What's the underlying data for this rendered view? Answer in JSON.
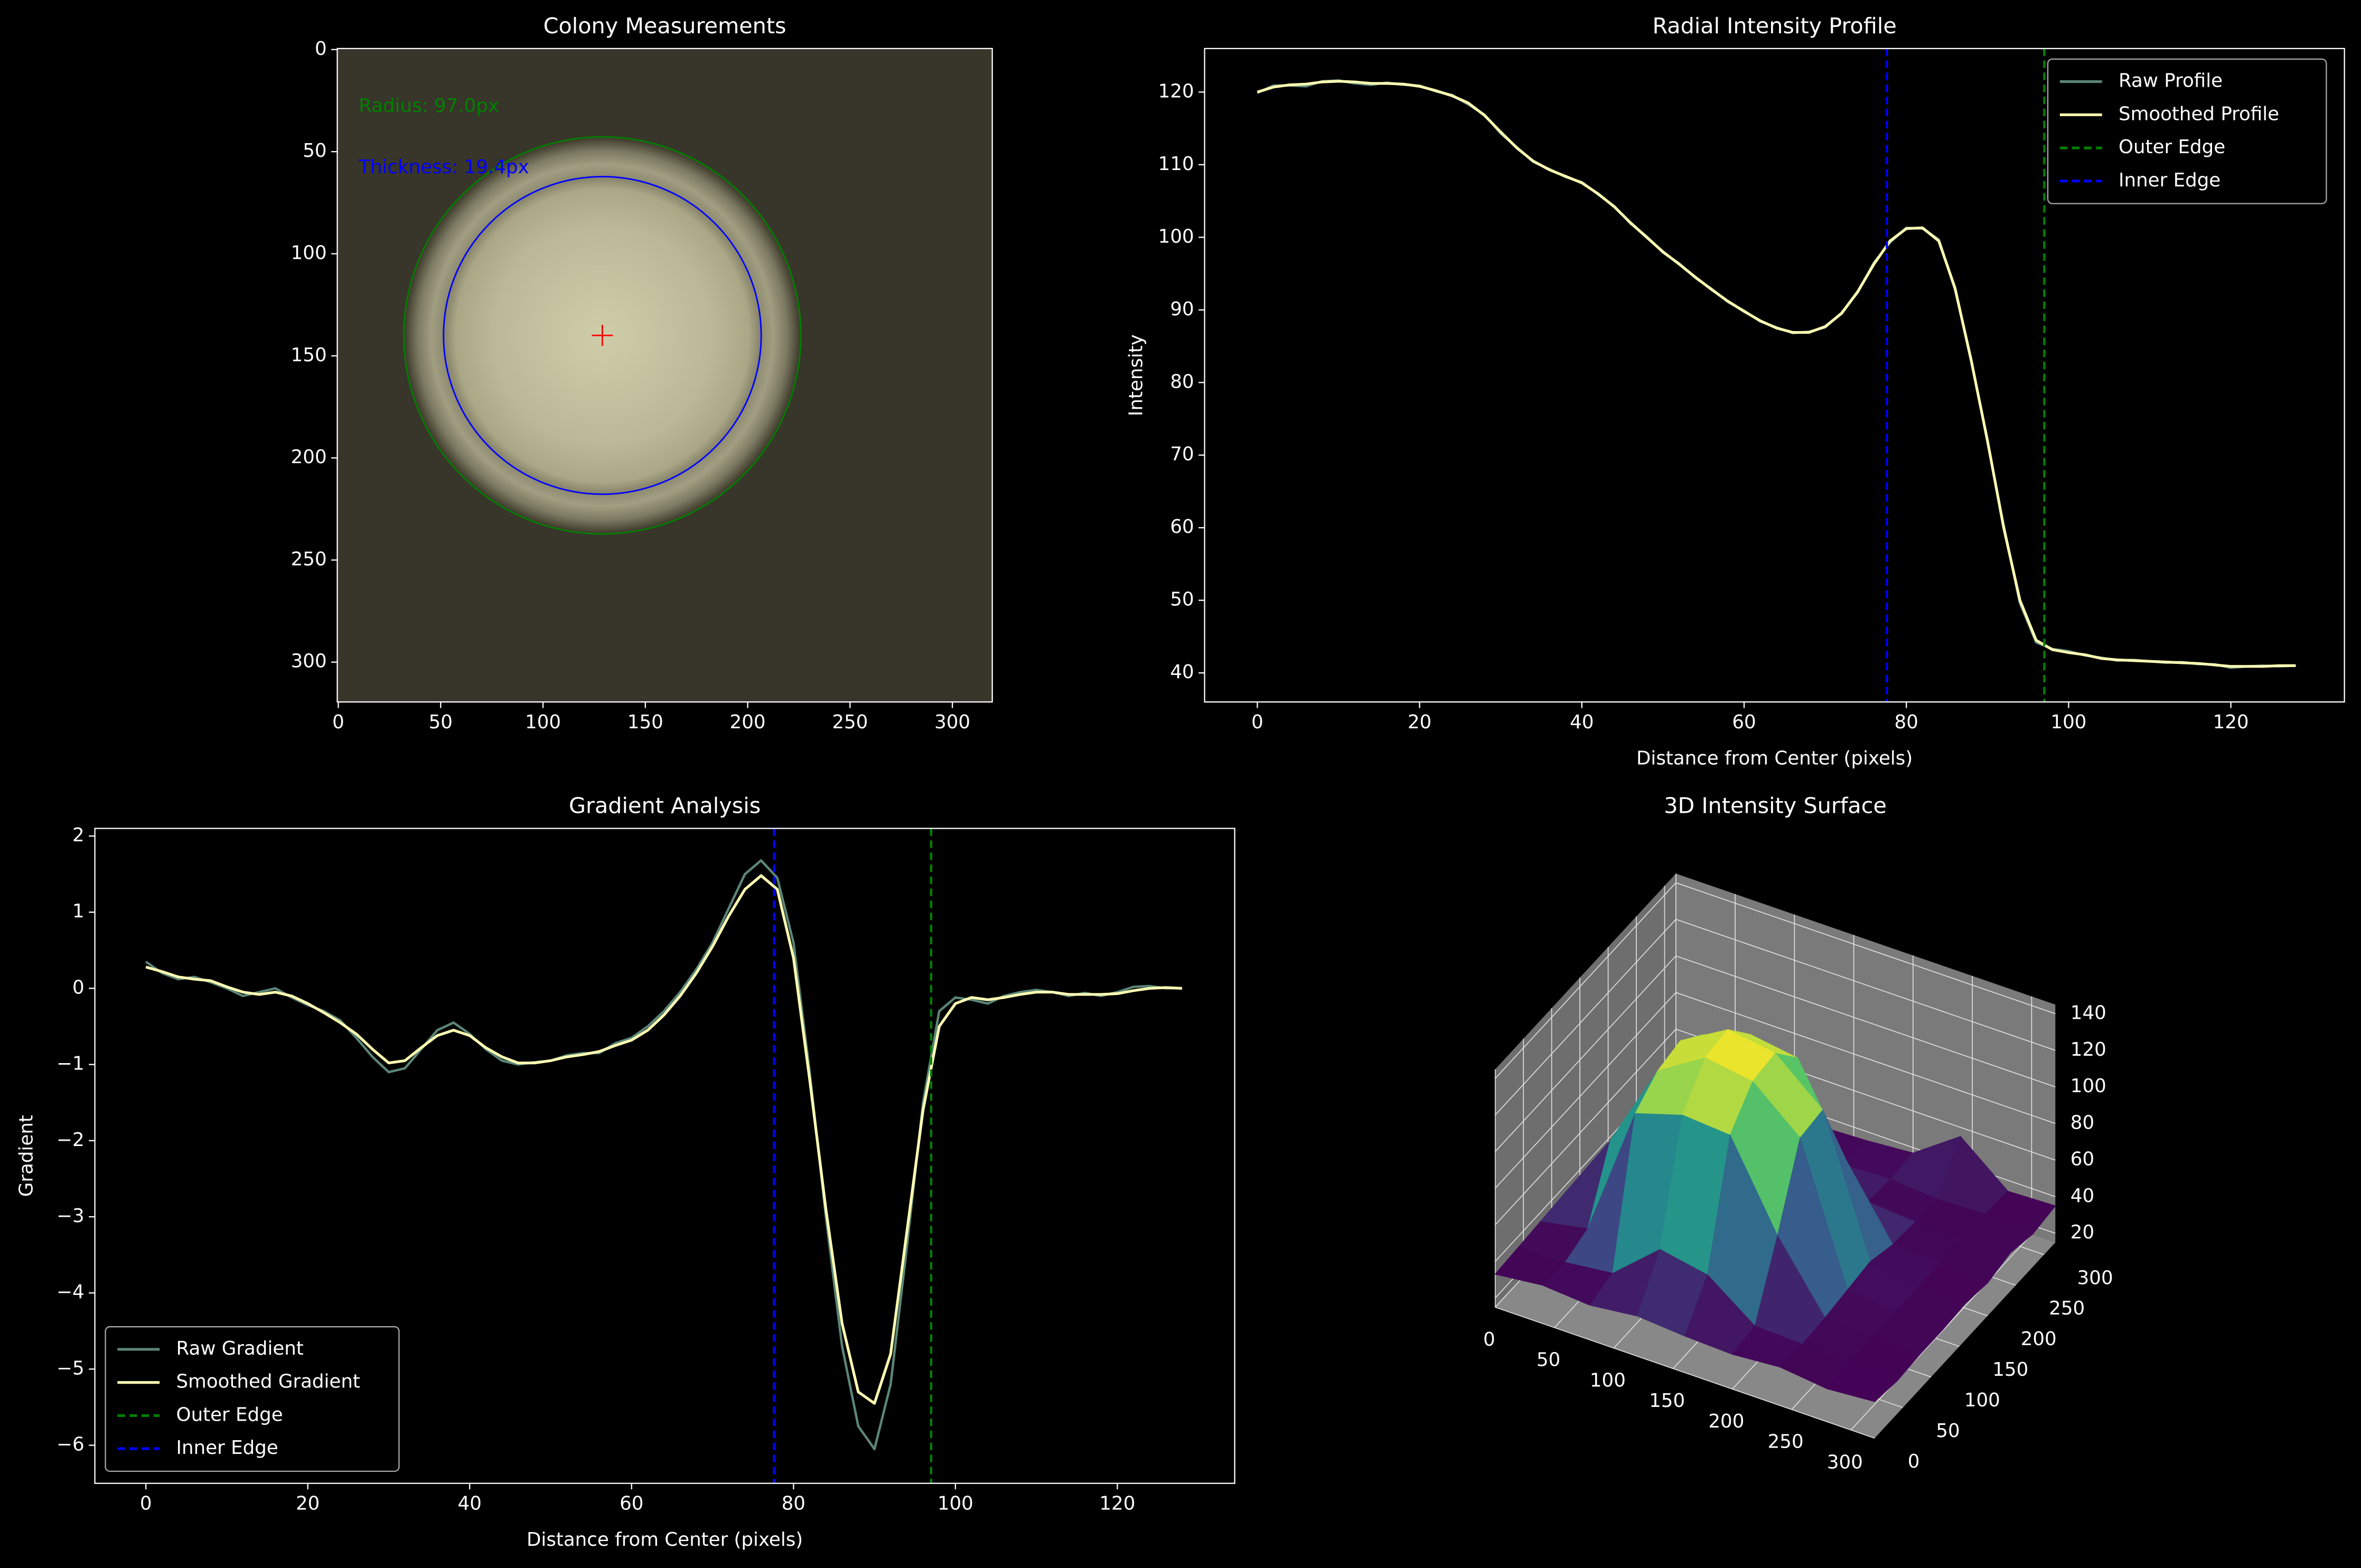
{
  "chart_data": [
    {
      "type": "image",
      "title": "Colony Measurements",
      "xlim": [
        -0.5,
        319.5
      ],
      "ylim": [
        319.5,
        -0.5
      ],
      "xticks": [
        0,
        50,
        100,
        150,
        200,
        250,
        300
      ],
      "yticks": [
        0,
        50,
        100,
        150,
        200,
        250,
        300
      ],
      "circles": [
        {
          "cx": 129,
          "cy": 140,
          "r": 97,
          "color": "green"
        },
        {
          "cx": 129,
          "cy": 140,
          "r": 77.6,
          "color": "blue"
        }
      ],
      "center": {
        "x": 129,
        "y": 140,
        "color": "red"
      },
      "annotations": [
        {
          "text": "Radius: 97.0px",
          "x": 10,
          "y": 28,
          "color": "green"
        },
        {
          "text": "Thickness: 19.4px",
          "x": 10,
          "y": 58,
          "color": "blue"
        }
      ]
    },
    {
      "type": "line",
      "title": "Radial Intensity Profile",
      "xlabel": "Distance from Center (pixels)",
      "ylabel": "Intensity",
      "legend": "upper right",
      "xlim": [
        -6.5,
        134
      ],
      "ylim": [
        36,
        126
      ],
      "xticks": [
        0,
        20,
        40,
        60,
        80,
        100,
        120
      ],
      "yticks": [
        40,
        50,
        60,
        70,
        80,
        90,
        100,
        110,
        120
      ],
      "x": [
        0,
        2,
        4,
        6,
        8,
        10,
        12,
        14,
        16,
        18,
        20,
        22,
        24,
        26,
        28,
        30,
        32,
        34,
        36,
        38,
        40,
        42,
        44,
        46,
        48,
        50,
        52,
        54,
        56,
        58,
        60,
        62,
        64,
        66,
        68,
        70,
        72,
        74,
        76,
        78,
        80,
        82,
        84,
        86,
        88,
        90,
        92,
        94,
        96,
        98,
        100,
        102,
        104,
        106,
        108,
        110,
        112,
        114,
        116,
        118,
        120,
        122,
        124,
        126,
        128
      ],
      "series": [
        {
          "name": "Raw Profile",
          "color": "#5b8578",
          "width": 1.6,
          "values": [
            119.9,
            120.9,
            120.9,
            120.8,
            121.5,
            121.6,
            121.2,
            121.0,
            121.3,
            121.0,
            120.9,
            120.1,
            119.6,
            118.3,
            116.9,
            114.3,
            112.4,
            110.4,
            109.4,
            108.3,
            107.6,
            105.9,
            104.3,
            101.9,
            100.1,
            97.9,
            96.4,
            94.4,
            92.9,
            91.1,
            89.9,
            88.4,
            87.6,
            86.8,
            87.0,
            87.6,
            89.6,
            92.4,
            96.5,
            99.3,
            101.3,
            101.2,
            99.7,
            92.8,
            83.2,
            71.8,
            60.3,
            49.6,
            44.2,
            43.3,
            43.0,
            42.4,
            42.1,
            41.7,
            41.8,
            41.6,
            41.4,
            41.5,
            41.2,
            41.2,
            40.7,
            40.9,
            41.0,
            40.9,
            41.0
          ]
        },
        {
          "name": "Smoothed Profile",
          "color": "#ffffb3",
          "width": 1.8,
          "values": [
            120,
            120.7,
            121,
            121.1,
            121.4,
            121.5,
            121.4,
            121.2,
            121.2,
            121.1,
            120.8,
            120.2,
            119.5,
            118.5,
            116.8,
            114.5,
            112.3,
            110.5,
            109.3,
            108.4,
            107.5,
            106,
            104.2,
            102,
            100,
            98,
            96.3,
            94.5,
            92.8,
            91.2,
            89.8,
            88.5,
            87.5,
            86.9,
            86.9,
            87.7,
            89.5,
            92.5,
            96.3,
            99.5,
            101.2,
            101.3,
            99.5,
            93,
            83,
            72,
            60,
            50,
            44.5,
            43.2,
            42.8,
            42.5,
            42,
            41.8,
            41.7,
            41.6,
            41.5,
            41.4,
            41.3,
            41.1,
            40.9,
            40.9,
            40.9,
            41,
            41
          ]
        }
      ],
      "vlines": [
        {
          "name": "Outer Edge",
          "x": 97,
          "color": "green"
        },
        {
          "name": "Inner Edge",
          "x": 77.6,
          "color": "blue"
        }
      ]
    },
    {
      "type": "line",
      "title": "Gradient Analysis",
      "xlabel": "Distance from Center (pixels)",
      "ylabel": "Gradient",
      "legend": "lower left",
      "xlim": [
        -6.3,
        134.5
      ],
      "ylim": [
        -6.5,
        2.1
      ],
      "xticks": [
        0,
        20,
        40,
        60,
        80,
        100,
        120
      ],
      "yticks": [
        {
          "value": -6,
          "label": "−6"
        },
        {
          "value": -5,
          "label": "−5"
        },
        {
          "value": -4,
          "label": "−4"
        },
        {
          "value": -3,
          "label": "−3"
        },
        {
          "value": -2,
          "label": "−2"
        },
        {
          "value": -1,
          "label": "−1"
        },
        0,
        1,
        2
      ],
      "x": [
        0,
        2,
        4,
        6,
        8,
        10,
        12,
        14,
        16,
        18,
        20,
        22,
        24,
        26,
        28,
        30,
        32,
        34,
        36,
        38,
        40,
        42,
        44,
        46,
        48,
        50,
        52,
        54,
        56,
        58,
        60,
        62,
        64,
        66,
        68,
        70,
        72,
        74,
        76,
        78,
        80,
        82,
        84,
        86,
        88,
        90,
        92,
        94,
        96,
        98,
        100,
        102,
        104,
        106,
        108,
        110,
        112,
        114,
        116,
        118,
        120,
        122,
        124,
        126,
        128
      ],
      "series": [
        {
          "name": "Raw Gradient",
          "color": "#5b8578",
          "width": 1.6,
          "values": [
            0.35,
            0.2,
            0.12,
            0.15,
            0.08,
            0,
            -0.1,
            -0.05,
            0,
            -0.12,
            -0.22,
            -0.3,
            -0.42,
            -0.65,
            -0.9,
            -1.1,
            -1.05,
            -0.8,
            -0.55,
            -0.45,
            -0.6,
            -0.8,
            -0.95,
            -1.0,
            -0.97,
            -0.95,
            -0.88,
            -0.85,
            -0.85,
            -0.72,
            -0.65,
            -0.5,
            -0.3,
            -0.05,
            0.25,
            0.6,
            1.05,
            1.5,
            1.68,
            1.45,
            0.6,
            -1.1,
            -3.0,
            -4.7,
            -5.75,
            -6.05,
            -5.2,
            -3.4,
            -1.5,
            -0.3,
            -0.12,
            -0.15,
            -0.2,
            -0.1,
            -0.05,
            -0.02,
            -0.05,
            -0.1,
            -0.06,
            -0.1,
            -0.05,
            0.02,
            0.03,
            0,
            0
          ]
        },
        {
          "name": "Smoothed Gradient",
          "color": "#ffffb3",
          "width": 1.8,
          "values": [
            0.28,
            0.22,
            0.15,
            0.12,
            0.1,
            0.02,
            -0.05,
            -0.08,
            -0.05,
            -0.1,
            -0.2,
            -0.32,
            -0.45,
            -0.6,
            -0.8,
            -0.98,
            -0.95,
            -0.78,
            -0.62,
            -0.55,
            -0.62,
            -0.78,
            -0.9,
            -0.98,
            -0.98,
            -0.95,
            -0.9,
            -0.87,
            -0.83,
            -0.75,
            -0.68,
            -0.55,
            -0.35,
            -0.1,
            0.2,
            0.55,
            0.95,
            1.3,
            1.48,
            1.3,
            0.4,
            -1.2,
            -2.9,
            -4.4,
            -5.3,
            -5.45,
            -4.8,
            -3.2,
            -1.6,
            -0.5,
            -0.2,
            -0.12,
            -0.15,
            -0.12,
            -0.08,
            -0.05,
            -0.05,
            -0.08,
            -0.08,
            -0.08,
            -0.07,
            -0.03,
            0,
            0.01,
            0
          ]
        }
      ],
      "vlines": [
        {
          "name": "Outer Edge",
          "x": 97,
          "color": "green"
        },
        {
          "name": "Inner Edge",
          "x": 77.6,
          "color": "blue"
        }
      ]
    },
    {
      "type": "surface",
      "title": "3D Intensity Surface",
      "colormap": "viridis",
      "xlim": [
        0,
        320
      ],
      "ylim": [
        0,
        320
      ],
      "zlim": [
        15,
        145
      ],
      "xticks": [
        0,
        50,
        100,
        150,
        200,
        250,
        300
      ],
      "yticks": [
        0,
        50,
        100,
        150,
        200,
        250,
        300
      ],
      "zticks": [
        20,
        40,
        60,
        80,
        100,
        120,
        140
      ],
      "x": [
        0,
        40,
        80,
        120,
        160,
        200,
        240,
        280,
        320
      ],
      "y": [
        0,
        40,
        80,
        120,
        160,
        200,
        240,
        280,
        320
      ],
      "z": [
        [
          33,
          36,
          34,
          37,
          35,
          34,
          36,
          33,
          35
        ],
        [
          34,
          35,
          38,
          60,
          55,
          36,
          35,
          34,
          33
        ],
        [
          35,
          40,
          112,
          120,
          118,
          72,
          36,
          35,
          34
        ],
        [
          36,
          75,
          122,
          138,
          134,
          112,
          38,
          35,
          34
        ],
        [
          35,
          78,
          125,
          140,
          136,
          114,
          40,
          34,
          35
        ],
        [
          34,
          42,
          115,
          124,
          120,
          74,
          36,
          35,
          33
        ],
        [
          35,
          36,
          40,
          62,
          58,
          37,
          35,
          34,
          36
        ],
        [
          34,
          35,
          36,
          37,
          35,
          36,
          34,
          35,
          33
        ],
        [
          35,
          33,
          36,
          34,
          35,
          37,
          55,
          34,
          35
        ]
      ]
    }
  ]
}
